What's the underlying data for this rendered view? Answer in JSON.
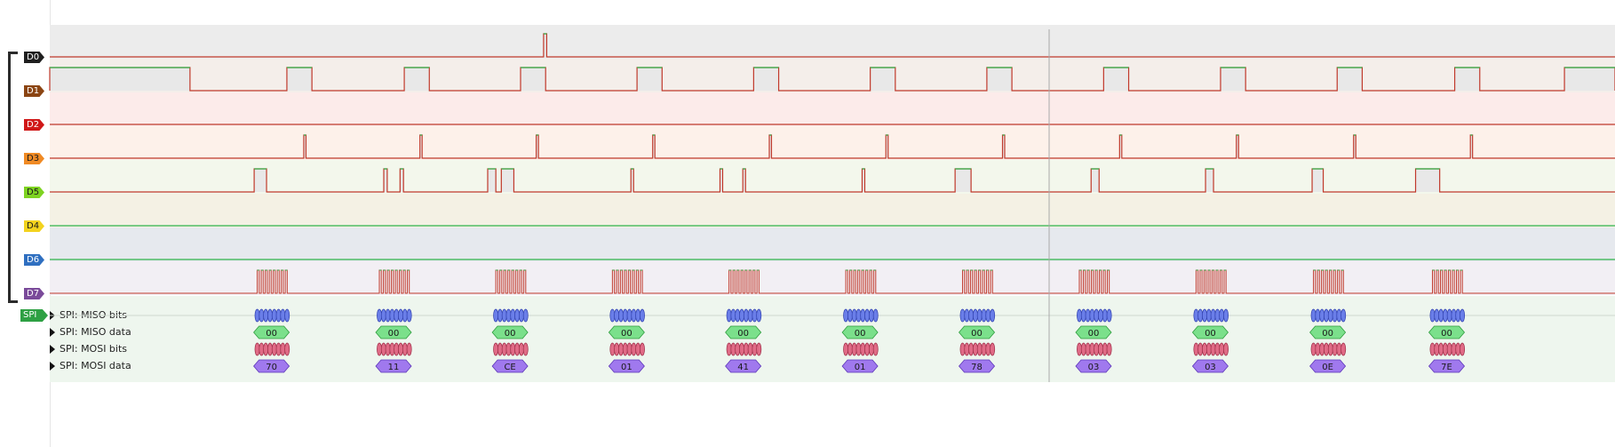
{
  "colors": {
    "signal": "#c0392b",
    "high": "#2fb34a",
    "miso_bits": "#6a7ee8",
    "miso_bits_stroke": "#2f3fae",
    "miso_data": "#7be08b",
    "miso_data_stroke": "#2e9c3d",
    "mosi_bits": "#e06b86",
    "mosi_bits_stroke": "#9c2b45",
    "mosi_data": "#a079ee",
    "mosi_data_stroke": "#5c36b8"
  },
  "channels": [
    {
      "label": "D0",
      "tag_color": "#1f1f1f",
      "text_color": "#ffffff",
      "band_color": "#ececec",
      "mode": "pulse",
      "pulses": [
        0.3155,
        0.3175
      ]
    },
    {
      "label": "D1",
      "tag_color": "#8b4513",
      "text_color": "#ffffff",
      "band_color": "#f4eeea",
      "mode": "pulse",
      "pulses": [
        0.0,
        0.0896,
        0.1515,
        0.1675,
        0.2265,
        0.2425,
        0.3008,
        0.3168,
        0.3752,
        0.3912,
        0.4497,
        0.4657,
        0.5242,
        0.5402,
        0.5987,
        0.6147,
        0.6733,
        0.6893,
        0.748,
        0.764,
        0.8225,
        0.8385,
        0.8976,
        0.9136,
        0.9677,
        1.0
      ]
    },
    {
      "label": "D2",
      "tag_color": "#d01818",
      "text_color": "#ffffff",
      "band_color": "#fcebea",
      "mode": "pulse",
      "pulses": []
    },
    {
      "label": "D3",
      "tag_color": "#f08a24",
      "text_color": "#1a1a1a",
      "band_color": "#fdf1ea",
      "mode": "pulse",
      "pulses": [
        0.1623,
        0.1637,
        0.2365,
        0.2379,
        0.3108,
        0.3122,
        0.3852,
        0.3866,
        0.4597,
        0.4611,
        0.5342,
        0.5356,
        0.6087,
        0.6101,
        0.6835,
        0.6849,
        0.7581,
        0.7595,
        0.833,
        0.8344,
        0.9076,
        0.909
      ]
    },
    {
      "label": "D5",
      "tag_color": "#7ed321",
      "text_color": "#1a1a1a",
      "band_color": "#f3f7ec",
      "mode": "pulse",
      "pulses": [
        0.1306,
        0.1385,
        0.2134,
        0.2156,
        0.2238,
        0.226,
        0.2798,
        0.285,
        0.2885,
        0.2965,
        0.3713,
        0.373,
        0.4282,
        0.4299,
        0.4428,
        0.4445,
        0.519,
        0.5207,
        0.5784,
        0.5886,
        0.6653,
        0.6704,
        0.7384,
        0.7435,
        0.8065,
        0.8136,
        0.8726,
        0.888
      ]
    },
    {
      "label": "D4",
      "tag_color": "#f3d31f",
      "text_color": "#1a1a1a",
      "band_color": "#f4f1e4",
      "mode": "high"
    },
    {
      "label": "D6",
      "tag_color": "#2f6fc0",
      "text_color": "#ffffff",
      "band_color": "#e6e9ee",
      "mode": "high"
    },
    {
      "label": "D7",
      "tag_color": "#7a4a9a",
      "text_color": "#ffffff",
      "band_color": "#f2eff4",
      "mode": "clock"
    }
  ],
  "spi": {
    "label": "SPI",
    "rows": [
      {
        "label": "SPI: MISO bits"
      },
      {
        "label": "SPI: MISO data"
      },
      {
        "label": "SPI: MOSI bits"
      },
      {
        "label": "SPI: MOSI data"
      }
    ],
    "frames": [
      {
        "x": 0.1303,
        "miso": "00",
        "mosi": "70"
      },
      {
        "x": 0.2083,
        "miso": "00",
        "mosi": "11"
      },
      {
        "x": 0.2827,
        "miso": "00",
        "mosi": "CE"
      },
      {
        "x": 0.3572,
        "miso": "00",
        "mosi": "01"
      },
      {
        "x": 0.4317,
        "miso": "00",
        "mosi": "41"
      },
      {
        "x": 0.5063,
        "miso": "00",
        "mosi": "01"
      },
      {
        "x": 0.5809,
        "miso": "00",
        "mosi": "78"
      },
      {
        "x": 0.6555,
        "miso": "00",
        "mosi": "03"
      },
      {
        "x": 0.7301,
        "miso": "00",
        "mosi": "03"
      },
      {
        "x": 0.8051,
        "miso": "00",
        "mosi": "0E"
      },
      {
        "x": 0.8811,
        "miso": "00",
        "mosi": "7E"
      }
    ]
  }
}
